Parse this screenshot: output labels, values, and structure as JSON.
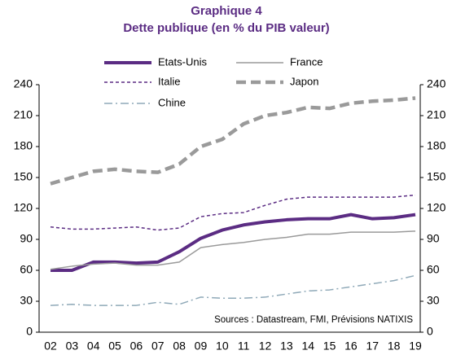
{
  "chart_data": {
    "type": "line",
    "title": "Graphique 4",
    "subtitle": "Dette publique (en % du PIB valeur)",
    "annotation": "Sources : Datastream,  FMI, Prévisions  NATIXIS",
    "categories": [
      "02",
      "03",
      "04",
      "05",
      "06",
      "07",
      "08",
      "09",
      "10",
      "11",
      "12",
      "13",
      "14",
      "15",
      "16",
      "17",
      "18",
      "19"
    ],
    "series": [
      {
        "name": "Etats-Unis",
        "color": "#5b2c83",
        "width": 4,
        "dash": "solid",
        "values": [
          60,
          60,
          68,
          68,
          67,
          68,
          78,
          91,
          99,
          104,
          107,
          109,
          110,
          110,
          114,
          110,
          111,
          114
        ]
      },
      {
        "name": "France",
        "color": "#9a9a9a",
        "width": 1.5,
        "dash": "solid",
        "values": [
          61,
          64,
          66,
          67,
          65,
          65,
          68,
          82,
          85,
          87,
          90,
          92,
          95,
          95,
          97,
          97,
          97,
          98
        ]
      },
      {
        "name": "Italie",
        "color": "#5b2c83",
        "width": 1.5,
        "dash": "dashed",
        "values": [
          102,
          100,
          100,
          101,
          102,
          99,
          101,
          112,
          115,
          116,
          123,
          129,
          131,
          131,
          131,
          131,
          131,
          133
        ]
      },
      {
        "name": "Japon",
        "color": "#9a9a9a",
        "width": 4.5,
        "dash": "dashed-wide",
        "values": [
          144,
          150,
          156,
          158,
          156,
          155,
          163,
          180,
          187,
          202,
          210,
          213,
          218,
          217,
          222,
          224,
          225,
          227
        ]
      },
      {
        "name": "Chine",
        "color": "#8fa9b8",
        "width": 1.5,
        "dash": "dash-dot",
        "values": [
          26,
          27,
          26,
          26,
          26,
          29,
          27,
          34,
          33,
          33,
          34,
          37,
          40,
          41,
          44,
          47,
          50,
          55
        ]
      }
    ],
    "ylim": [
      0,
      240
    ],
    "yticks": [
      0,
      30,
      60,
      90,
      120,
      150,
      180,
      210,
      240
    ],
    "y2lim": [
      0,
      240
    ],
    "y2ticks": [
      0,
      30,
      60,
      90,
      120,
      150,
      180,
      210,
      240
    ],
    "grid": false
  }
}
